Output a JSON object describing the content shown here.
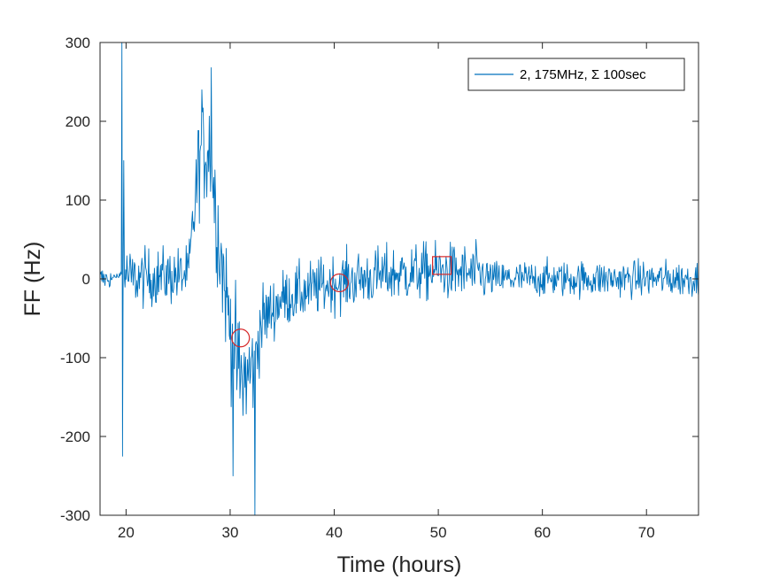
{
  "chart_data": {
    "type": "line",
    "xlabel": "Time (hours)",
    "ylabel": "FF (Hz)",
    "xlim": [
      17.5,
      75
    ],
    "ylim": [
      -300,
      300
    ],
    "xticks": [
      20,
      30,
      40,
      50,
      60,
      70
    ],
    "yticks": [
      -300,
      -200,
      -100,
      0,
      100,
      200,
      300
    ],
    "xtick_labels": [
      "20",
      "30",
      "40",
      "50",
      "60",
      "70"
    ],
    "ytick_labels": [
      "-300",
      "-200",
      "-100",
      "0",
      "100",
      "200",
      "300"
    ],
    "grid": false,
    "legend_position": "top-right",
    "colors": {
      "series": "#0072BD",
      "markers": "#D62728",
      "axes": "#262626"
    },
    "series": [
      {
        "name": "2, 175MHz, Σ 100sec",
        "envelope": [
          {
            "x": 17.5,
            "mean": 0,
            "spread": 20
          },
          {
            "x": 19.0,
            "mean": 0,
            "spread": 10
          },
          {
            "x": 19.7,
            "mean": 10,
            "spread": 40
          },
          {
            "x": 20.5,
            "mean": 0,
            "spread": 40
          },
          {
            "x": 26.0,
            "mean": 5,
            "spread": 40
          },
          {
            "x": 27.0,
            "mean": 150,
            "spread": 70
          },
          {
            "x": 28.0,
            "mean": 170,
            "spread": 80
          },
          {
            "x": 29.0,
            "mean": 40,
            "spread": 80
          },
          {
            "x": 30.0,
            "mean": -60,
            "spread": 80
          },
          {
            "x": 31.0,
            "mean": -130,
            "spread": 90
          },
          {
            "x": 32.0,
            "mean": -120,
            "spread": 80
          },
          {
            "x": 33.0,
            "mean": -55,
            "spread": 50
          },
          {
            "x": 35.0,
            "mean": -25,
            "spread": 40
          },
          {
            "x": 40.0,
            "mean": -5,
            "spread": 40
          },
          {
            "x": 45.0,
            "mean": 5,
            "spread": 40
          },
          {
            "x": 50.0,
            "mean": 10,
            "spread": 40
          },
          {
            "x": 54.0,
            "mean": 5,
            "spread": 40
          },
          {
            "x": 55.0,
            "mean": 0,
            "spread": 25
          },
          {
            "x": 75.0,
            "mean": 0,
            "spread": 25
          }
        ],
        "spikes": [
          {
            "x": 19.6,
            "y": 300
          },
          {
            "x": 19.65,
            "y": -225
          },
          {
            "x": 19.8,
            "y": 150
          },
          {
            "x": 27.3,
            "y": 240
          },
          {
            "x": 28.2,
            "y": 268
          },
          {
            "x": 30.3,
            "y": -250
          },
          {
            "x": 32.4,
            "y": -300
          }
        ]
      }
    ],
    "annotations": [
      {
        "shape": "circle",
        "x": 31.0,
        "y": -75
      },
      {
        "shape": "circle",
        "x": 40.5,
        "y": -5
      },
      {
        "shape": "square",
        "x": 50.3,
        "y": 17
      }
    ]
  }
}
